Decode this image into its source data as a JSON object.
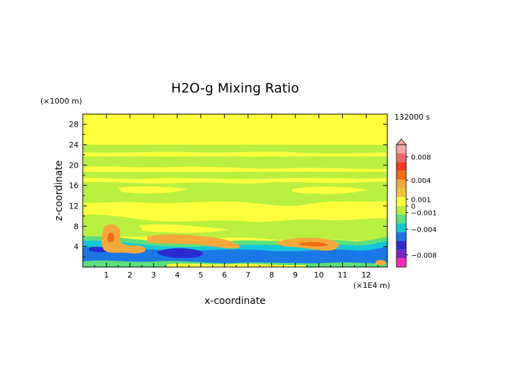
{
  "chart_data": {
    "type": "heatmap",
    "title": "H2O-g Mixing Ratio",
    "xlabel": "x-coordinate",
    "ylabel": "z-coordinate",
    "x_unit": "(×1E4 m)",
    "y_unit": "(×1000 m)",
    "time_label": "132000 s",
    "xlim": [
      0,
      12.9
    ],
    "ylim": [
      0,
      30
    ],
    "x_ticks": [
      "1",
      "2",
      "3",
      "4",
      "5",
      "6",
      "7",
      "8",
      "9",
      "10",
      "11",
      "12"
    ],
    "y_ticks": [
      "4",
      "8",
      "12",
      "16",
      "20",
      "24",
      "28"
    ],
    "colorbar_labels": [
      "0.008",
      "0.004",
      "0.001",
      "0",
      "−0.001",
      "−0.004",
      "−0.008"
    ],
    "levels": [
      {
        "lo": 0.008,
        "hi": 0.01,
        "color": "#f4a7a7"
      },
      {
        "lo": 0.006,
        "hi": 0.008,
        "color": "#f06a6a"
      },
      {
        "lo": 0.004,
        "hi": 0.006,
        "color": "#f23a1e"
      },
      {
        "lo": 0.002,
        "hi": 0.004,
        "color": "#f46a14"
      },
      {
        "lo": 0.001,
        "hi": 0.002,
        "color": "#f7a83b"
      },
      {
        "lo": 0.0005,
        "hi": 0.001,
        "color": "#f5c23a"
      },
      {
        "lo": 0.0,
        "hi": 0.0005,
        "color": "#ffff3c"
      },
      {
        "lo": -0.0005,
        "hi": 0.0,
        "color": "#b9f040"
      },
      {
        "lo": -0.001,
        "hi": -0.0005,
        "color": "#5be07a"
      },
      {
        "lo": -0.002,
        "hi": -0.001,
        "color": "#12c8d8"
      },
      {
        "lo": -0.004,
        "hi": -0.002,
        "color": "#1a78e6"
      },
      {
        "lo": -0.006,
        "hi": -0.004,
        "color": "#2a2ad0"
      },
      {
        "lo": -0.008,
        "hi": -0.006,
        "color": "#7a22c8"
      },
      {
        "lo": -0.01,
        "hi": -0.008,
        "color": "#ff2ab8"
      }
    ],
    "regions": [
      {
        "layer": "yellow",
        "x": [
          0,
          12.9
        ],
        "z": [
          25.5,
          30
        ]
      },
      {
        "layer": "green",
        "x": [
          0,
          12.9
        ],
        "z": [
          22.5,
          25.0
        ]
      },
      {
        "layer": "green",
        "x": [
          0,
          12.9
        ],
        "z": [
          19.5,
          21.5
        ]
      },
      {
        "layer": "green",
        "x": [
          0,
          12.9
        ],
        "z": [
          16.5,
          18.5
        ]
      },
      {
        "layer": "green",
        "x": [
          0,
          12.9
        ],
        "z": [
          12.5,
          16.0
        ]
      },
      {
        "layer": "green",
        "x": [
          0,
          12.9
        ],
        "z": [
          6.5,
          9.5
        ]
      },
      {
        "layer": "orange",
        "x": [
          0.8,
          1.6
        ],
        "z": [
          3.0,
          8.0
        ]
      },
      {
        "layer": "orange",
        "x": [
          3.0,
          6.4
        ],
        "z": [
          3.8,
          5.8
        ]
      },
      {
        "layer": "orange",
        "x": [
          8.4,
          10.8
        ],
        "z": [
          3.0,
          5.2
        ]
      },
      {
        "layer": "blue",
        "x": [
          0,
          12.9
        ],
        "z": [
          0,
          3.0
        ]
      },
      {
        "layer": "darkblue",
        "x": [
          3.4,
          4.8
        ],
        "z": [
          2.0,
          3.2
        ]
      }
    ]
  }
}
